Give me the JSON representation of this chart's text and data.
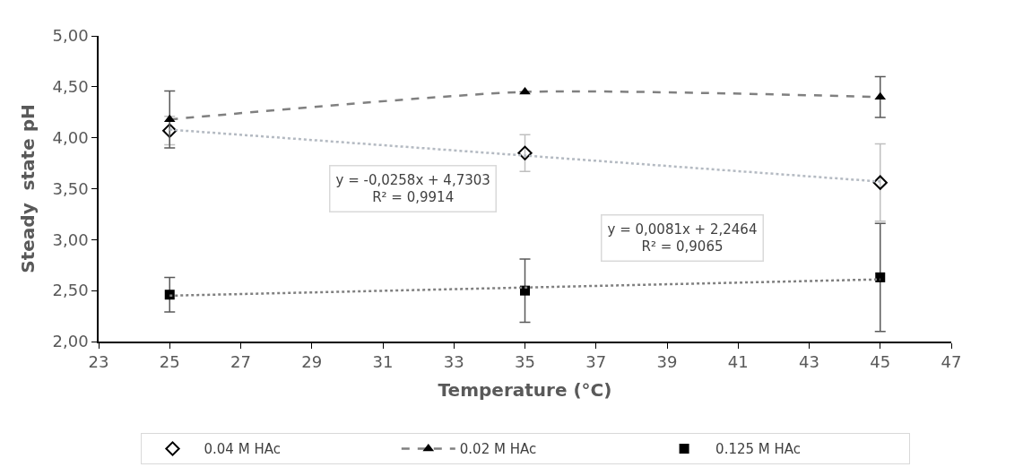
{
  "chart_data": {
    "type": "scatter",
    "xlabel": "Temperature (°C)",
    "ylabel": "Steady  state pH",
    "xlim": [
      23,
      47
    ],
    "xticks": [
      23,
      25,
      27,
      29,
      31,
      33,
      35,
      37,
      39,
      41,
      43,
      45,
      47
    ],
    "ylim": [
      2,
      5
    ],
    "yticks": [
      {
        "value": 2,
        "label": "2,00"
      },
      {
        "value": 2.5,
        "label": "2,50"
      },
      {
        "value": 3,
        "label": "3,00"
      },
      {
        "value": 3.5,
        "label": "3,50"
      },
      {
        "value": 4,
        "label": "4,00"
      },
      {
        "value": 4.5,
        "label": "4,50"
      },
      {
        "value": 5,
        "label": "5,00"
      }
    ],
    "legend": "bottom",
    "series": [
      {
        "name": "0.04 M HAc",
        "marker": "diamond",
        "color": "#000000",
        "x": [
          25,
          35,
          45
        ],
        "values": [
          4.07,
          3.85,
          3.56
        ],
        "errors": [
          0.14,
          0.18,
          0.38
        ]
      },
      {
        "name": "0.02 M HAc",
        "type": "line",
        "marker": "triangle",
        "line_style": "dashed",
        "color": "#000000",
        "x": [
          25,
          35,
          45
        ],
        "values": [
          4.18,
          4.45,
          4.4
        ],
        "errors": [
          0.28,
          null,
          0.2
        ]
      },
      {
        "name": "0.125 M HAc",
        "marker": "square",
        "color": "#000000",
        "x": [
          25,
          35,
          45
        ],
        "values": [
          2.46,
          2.5,
          2.63
        ],
        "errors": [
          0.17,
          0.31,
          0.53
        ]
      },
      {
        "type": "line",
        "marker": "none",
        "line_style": "dotted",
        "color": "#b4bac2",
        "x": [
          25,
          45
        ],
        "values": [
          4.08,
          3.57
        ]
      },
      {
        "type": "line",
        "marker": "none",
        "line_style": "dotted",
        "color": "#808080",
        "x": [
          25,
          45
        ],
        "values": [
          2.45,
          2.61
        ]
      }
    ],
    "annotations": [
      "y = -0,0258x + 4,7303\nR² = 0,9914",
      "y = 0,0081x + 2,2464\nR² = 0,9065"
    ]
  }
}
